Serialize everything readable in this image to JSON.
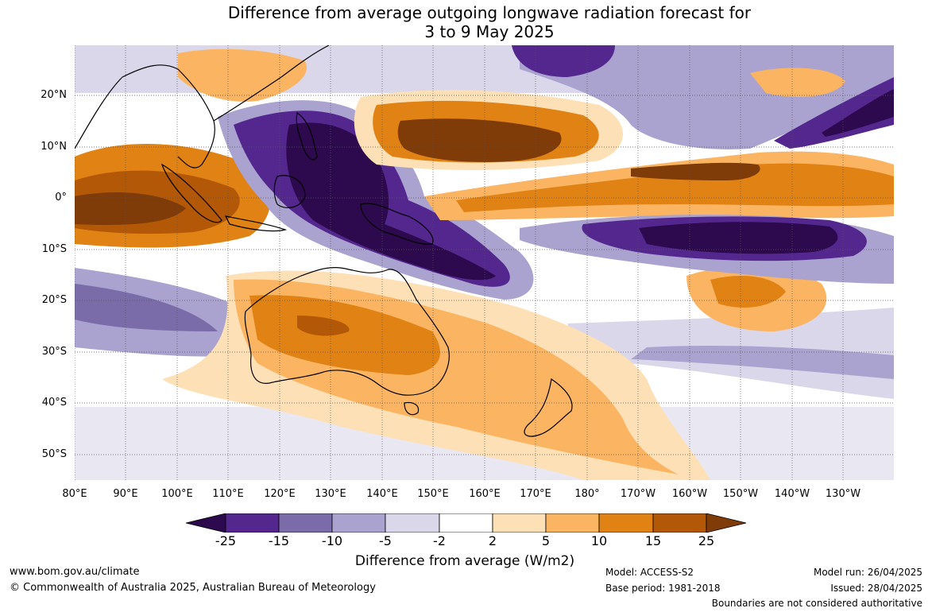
{
  "title_line1": "Difference from average outgoing longwave radiation forecast for",
  "title_line2": "3 to 9 May 2025",
  "latitude_labels": [
    "20°N",
    "10°N",
    "0°",
    "10°S",
    "20°S",
    "30°S",
    "40°S",
    "50°S"
  ],
  "longitude_labels": [
    "80°E",
    "90°E",
    "100°E",
    "110°E",
    "120°E",
    "130°E",
    "140°E",
    "150°E",
    "160°E",
    "170°E",
    "180°",
    "170°W",
    "160°W",
    "150°W",
    "140°W",
    "130°W"
  ],
  "colorbar": {
    "ticks": [
      "-25",
      "-15",
      "-10",
      "-5",
      "-2",
      "2",
      "5",
      "10",
      "15",
      "25"
    ],
    "colors": {
      "below_-25": "#2d0a4e",
      "-25_-15": "#54278f",
      "-15_-10": "#7a6ca8",
      "-10_-5": "#aaa2cf",
      "-5_-2": "#d9d7e9",
      "-2_2": "#ffffff",
      "2_5": "#fee0b6",
      "5_10": "#fbb461",
      "10_15": "#e08214",
      "15_25": "#b35806",
      "above_25": "#7f3b08"
    },
    "title": "Difference from average (W/m2)"
  },
  "footer": {
    "website": "www.bom.gov.au/climate",
    "copyright": "© Commonwealth of Australia 2025, Australian Bureau of Meteorology",
    "model": "Model: ACCESS-S2",
    "base_period": "Base period: 1981-2018",
    "model_run": "Model run: 26/04/2025",
    "issued": "Issued: 28/04/2025",
    "boundaries_note": "Boundaries are not considered authoritative"
  }
}
